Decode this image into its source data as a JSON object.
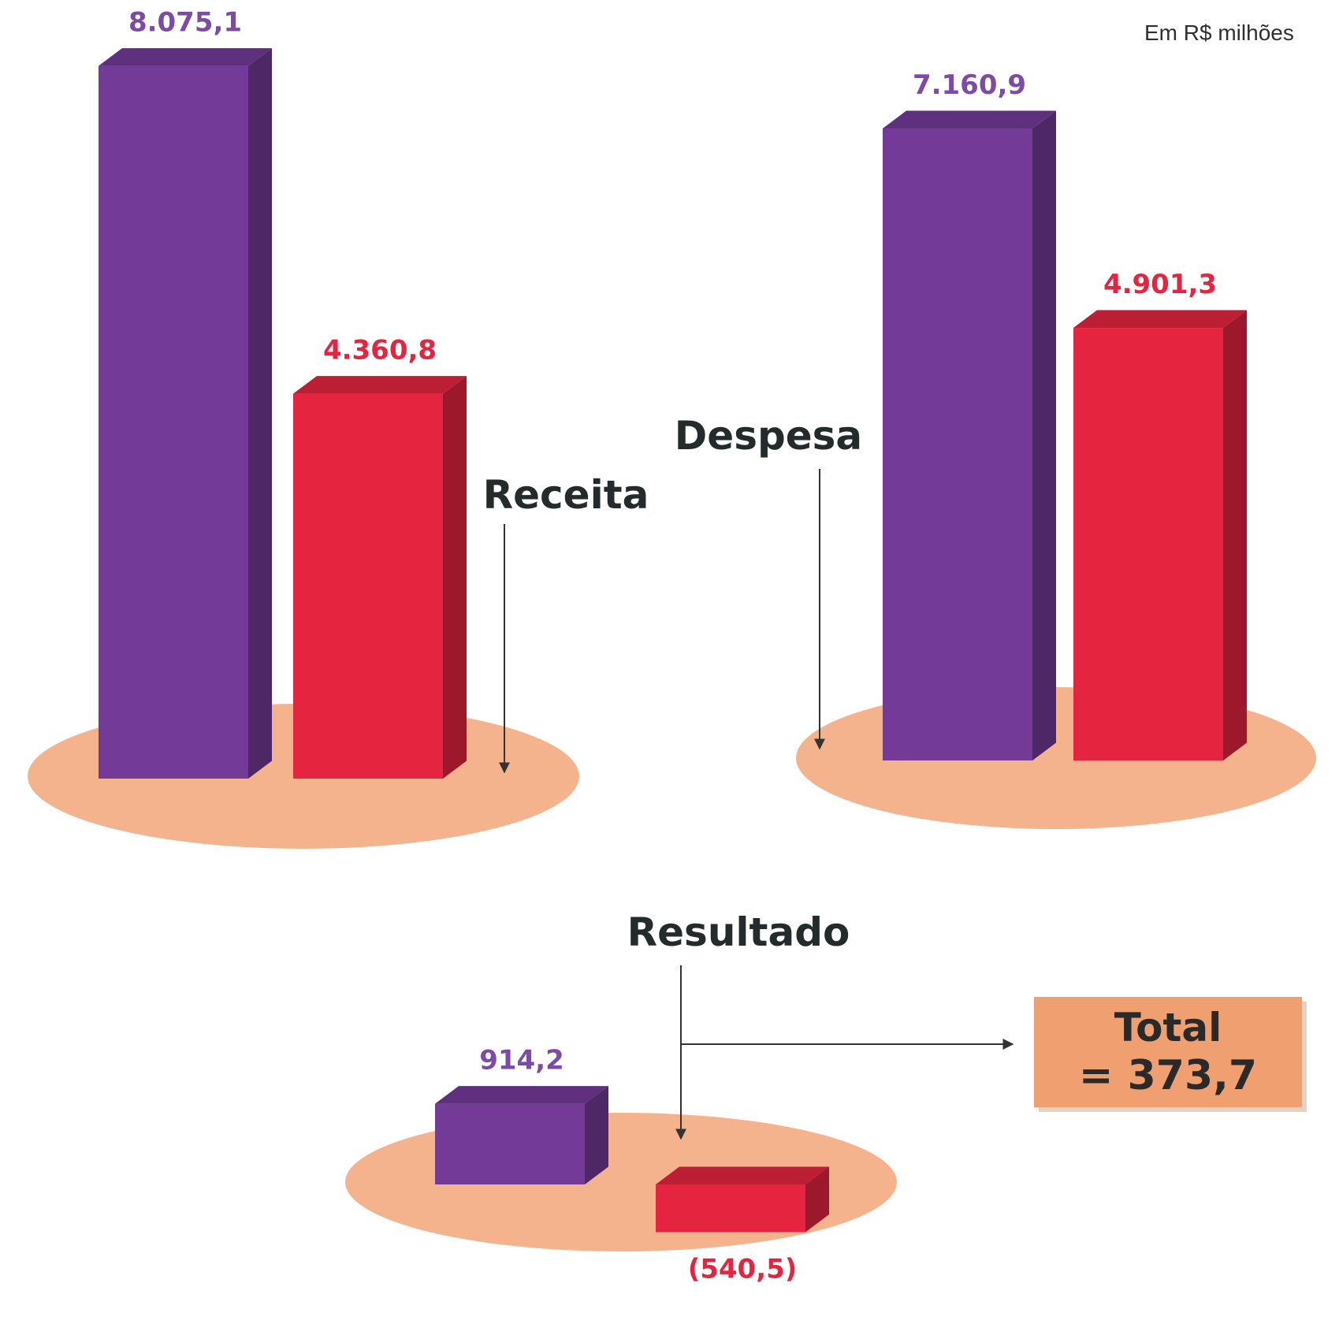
{
  "unit_note": "Em R$ milhões",
  "total": {
    "label": "Total",
    "value": "= 373,7"
  },
  "colors": {
    "purple": "#733a98",
    "red": "#e5243f",
    "platform": "#f4b38d",
    "label_text": "#232b2d",
    "purple_label": "#7d4aa8",
    "red_label": "#e5243f"
  },
  "chart_data": [
    {
      "type": "bar",
      "title": "Receita",
      "values": [
        8075.1,
        4360.8
      ],
      "value_labels": [
        "8.075,1",
        "4.360,8"
      ],
      "colors": [
        "#733a98",
        "#e5243f"
      ]
    },
    {
      "type": "bar",
      "title": "Despesa",
      "values": [
        7160.9,
        4901.3
      ],
      "value_labels": [
        "7.160,9",
        "4.901,3"
      ],
      "colors": [
        "#733a98",
        "#e5243f"
      ]
    },
    {
      "type": "bar",
      "title": "Resultado",
      "values": [
        914.2,
        -540.5
      ],
      "value_labels": [
        "914,2",
        "(540,5)"
      ],
      "colors": [
        "#733a98",
        "#e5243f"
      ]
    }
  ]
}
